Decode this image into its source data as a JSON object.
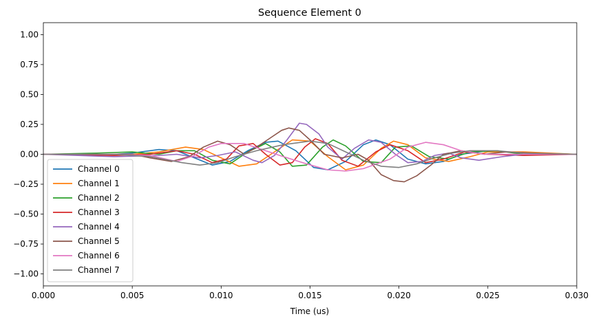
{
  "chart_data": {
    "type": "line",
    "title": "Sequence Element 0",
    "xlabel": "Time (us)",
    "ylabel": "",
    "xlim": [
      0.0,
      0.03
    ],
    "ylim": [
      -1.1,
      1.1
    ],
    "xticks": [
      "0.000",
      "0.005",
      "0.010",
      "0.015",
      "0.020",
      "0.025",
      "0.030"
    ],
    "yticks": [
      "-1.00",
      "-0.75",
      "-0.50",
      "-0.25",
      "0.00",
      "0.25",
      "0.50",
      "0.75",
      "1.00"
    ],
    "grid": false,
    "legend_position": "lower-left",
    "series": [
      {
        "name": "Channel 0",
        "color": "#1f77b4",
        "points": [
          [
            0,
            0
          ],
          [
            0.004,
            0.0
          ],
          [
            0.005,
            0.01
          ],
          [
            0.0065,
            0.04
          ],
          [
            0.0075,
            0.03
          ],
          [
            0.0085,
            -0.03
          ],
          [
            0.0095,
            -0.09
          ],
          [
            0.0105,
            -0.06
          ],
          [
            0.0115,
            0.03
          ],
          [
            0.0125,
            0.1
          ],
          [
            0.0132,
            0.11
          ],
          [
            0.0142,
            0.03
          ],
          [
            0.0152,
            -0.11
          ],
          [
            0.016,
            -0.13
          ],
          [
            0.017,
            -0.06
          ],
          [
            0.018,
            0.08
          ],
          [
            0.0187,
            0.12
          ],
          [
            0.0195,
            0.08
          ],
          [
            0.0205,
            -0.04
          ],
          [
            0.0215,
            -0.08
          ],
          [
            0.0225,
            -0.06
          ],
          [
            0.0235,
            0.0
          ],
          [
            0.025,
            0.03
          ],
          [
            0.027,
            0.01
          ],
          [
            0.03,
            0
          ]
        ]
      },
      {
        "name": "Channel 1",
        "color": "#ff7f0e",
        "points": [
          [
            0,
            0
          ],
          [
            0.005,
            0.0
          ],
          [
            0.0065,
            0.02
          ],
          [
            0.008,
            0.06
          ],
          [
            0.009,
            0.04
          ],
          [
            0.01,
            -0.03
          ],
          [
            0.011,
            -0.1
          ],
          [
            0.012,
            -0.08
          ],
          [
            0.013,
            0.02
          ],
          [
            0.014,
            0.12
          ],
          [
            0.015,
            0.11
          ],
          [
            0.016,
            -0.02
          ],
          [
            0.017,
            -0.13
          ],
          [
            0.018,
            -0.09
          ],
          [
            0.019,
            0.05
          ],
          [
            0.0197,
            0.11
          ],
          [
            0.0205,
            0.08
          ],
          [
            0.0215,
            -0.03
          ],
          [
            0.0228,
            -0.06
          ],
          [
            0.024,
            -0.02
          ],
          [
            0.025,
            0.02
          ],
          [
            0.027,
            0.02
          ],
          [
            0.03,
            0
          ]
        ]
      },
      {
        "name": "Channel 2",
        "color": "#2ca02c",
        "points": [
          [
            0,
            0
          ],
          [
            0.003,
            0.01
          ],
          [
            0.005,
            0.02
          ],
          [
            0.0065,
            0.0
          ],
          [
            0.0075,
            0.03
          ],
          [
            0.0085,
            0.03
          ],
          [
            0.0095,
            -0.05
          ],
          [
            0.0105,
            -0.08
          ],
          [
            0.0115,
            0.02
          ],
          [
            0.0125,
            0.09
          ],
          [
            0.0133,
            0.02
          ],
          [
            0.014,
            -0.1
          ],
          [
            0.0148,
            -0.09
          ],
          [
            0.0157,
            0.06
          ],
          [
            0.0163,
            0.12
          ],
          [
            0.017,
            0.07
          ],
          [
            0.018,
            -0.06
          ],
          [
            0.019,
            -0.07
          ],
          [
            0.0198,
            0.06
          ],
          [
            0.0207,
            0.07
          ],
          [
            0.0217,
            -0.02
          ],
          [
            0.0228,
            -0.04
          ],
          [
            0.024,
            0.02
          ],
          [
            0.0255,
            0.03
          ],
          [
            0.027,
            0.0
          ],
          [
            0.03,
            0
          ]
        ]
      },
      {
        "name": "Channel 3",
        "color": "#d62728",
        "points": [
          [
            0,
            0
          ],
          [
            0.004,
            -0.01
          ],
          [
            0.006,
            0.0
          ],
          [
            0.0075,
            0.03
          ],
          [
            0.0085,
            0.0
          ],
          [
            0.0095,
            -0.07
          ],
          [
            0.0103,
            -0.04
          ],
          [
            0.011,
            0.07
          ],
          [
            0.0118,
            0.09
          ],
          [
            0.0125,
            0.0
          ],
          [
            0.0133,
            -0.09
          ],
          [
            0.014,
            -0.07
          ],
          [
            0.0147,
            0.06
          ],
          [
            0.0153,
            0.13
          ],
          [
            0.016,
            0.09
          ],
          [
            0.0168,
            -0.05
          ],
          [
            0.0177,
            -0.1
          ],
          [
            0.0187,
            0.02
          ],
          [
            0.0195,
            0.08
          ],
          [
            0.0205,
            0.03
          ],
          [
            0.0215,
            -0.07
          ],
          [
            0.0225,
            -0.04
          ],
          [
            0.0237,
            0.02
          ],
          [
            0.025,
            0.0
          ],
          [
            0.027,
            -0.01
          ],
          [
            0.03,
            0
          ]
        ]
      },
      {
        "name": "Channel 4",
        "color": "#9467bd",
        "points": [
          [
            0,
            0
          ],
          [
            0.004,
            -0.02
          ],
          [
            0.0065,
            -0.01
          ],
          [
            0.0075,
            0.0
          ],
          [
            0.0088,
            -0.03
          ],
          [
            0.0098,
            -0.01
          ],
          [
            0.0108,
            0.02
          ],
          [
            0.0118,
            -0.05
          ],
          [
            0.0123,
            -0.07
          ],
          [
            0.013,
            -0.01
          ],
          [
            0.0137,
            0.12
          ],
          [
            0.0144,
            0.26
          ],
          [
            0.0148,
            0.25
          ],
          [
            0.0155,
            0.17
          ],
          [
            0.016,
            0.06
          ],
          [
            0.0168,
            -0.04
          ],
          [
            0.0175,
            0.05
          ],
          [
            0.0183,
            0.12
          ],
          [
            0.019,
            0.1
          ],
          [
            0.0198,
            0.0
          ],
          [
            0.0205,
            -0.07
          ],
          [
            0.0213,
            -0.06
          ],
          [
            0.022,
            -0.01
          ],
          [
            0.0228,
            0.01
          ],
          [
            0.0235,
            -0.03
          ],
          [
            0.0245,
            -0.05
          ],
          [
            0.0258,
            -0.02
          ],
          [
            0.027,
            0.0
          ],
          [
            0.03,
            0
          ]
        ]
      },
      {
        "name": "Channel 5",
        "color": "#8c564b",
        "points": [
          [
            0,
            0
          ],
          [
            0.005,
            0.0
          ],
          [
            0.006,
            -0.03
          ],
          [
            0.0072,
            -0.06
          ],
          [
            0.0082,
            -0.02
          ],
          [
            0.009,
            0.06
          ],
          [
            0.0098,
            0.11
          ],
          [
            0.0105,
            0.08
          ],
          [
            0.0113,
            0.0
          ],
          [
            0.012,
            0.06
          ],
          [
            0.0128,
            0.14
          ],
          [
            0.0134,
            0.2
          ],
          [
            0.0138,
            0.22
          ],
          [
            0.0144,
            0.2
          ],
          [
            0.015,
            0.12
          ],
          [
            0.0158,
            0.0
          ],
          [
            0.0168,
            -0.03
          ],
          [
            0.0177,
            0.0
          ],
          [
            0.0183,
            -0.05
          ],
          [
            0.019,
            -0.17
          ],
          [
            0.0197,
            -0.22
          ],
          [
            0.0203,
            -0.23
          ],
          [
            0.021,
            -0.18
          ],
          [
            0.0218,
            -0.09
          ],
          [
            0.0225,
            0.0
          ],
          [
            0.0235,
            0.03
          ],
          [
            0.0248,
            0.0
          ],
          [
            0.026,
            0.02
          ],
          [
            0.0275,
            0.01
          ],
          [
            0.03,
            0
          ]
        ]
      },
      {
        "name": "Channel 6",
        "color": "#e377c2",
        "points": [
          [
            0,
            0
          ],
          [
            0.004,
            0.0
          ],
          [
            0.006,
            -0.01
          ],
          [
            0.0075,
            -0.06
          ],
          [
            0.0085,
            -0.01
          ],
          [
            0.0093,
            0.06
          ],
          [
            0.01,
            0.09
          ],
          [
            0.0113,
            0.09
          ],
          [
            0.0123,
            0.04
          ],
          [
            0.0133,
            -0.01
          ],
          [
            0.0148,
            -0.08
          ],
          [
            0.016,
            -0.13
          ],
          [
            0.017,
            -0.14
          ],
          [
            0.018,
            -0.12
          ],
          [
            0.0195,
            -0.04
          ],
          [
            0.0205,
            0.06
          ],
          [
            0.0215,
            0.1
          ],
          [
            0.0225,
            0.08
          ],
          [
            0.0235,
            0.03
          ],
          [
            0.0248,
            0.0
          ],
          [
            0.026,
            0.0
          ],
          [
            0.03,
            0
          ]
        ]
      },
      {
        "name": "Channel 7",
        "color": "#7f7f7f",
        "points": [
          [
            0,
            0
          ],
          [
            0.004,
            0.0
          ],
          [
            0.006,
            -0.02
          ],
          [
            0.0078,
            -0.07
          ],
          [
            0.0088,
            -0.09
          ],
          [
            0.0098,
            -0.07
          ],
          [
            0.0108,
            -0.02
          ],
          [
            0.012,
            0.03
          ],
          [
            0.0135,
            0.08
          ],
          [
            0.015,
            0.11
          ],
          [
            0.016,
            0.09
          ],
          [
            0.017,
            0.02
          ],
          [
            0.018,
            -0.05
          ],
          [
            0.019,
            -0.1
          ],
          [
            0.02,
            -0.11
          ],
          [
            0.021,
            -0.08
          ],
          [
            0.022,
            -0.03
          ],
          [
            0.023,
            0.01
          ],
          [
            0.024,
            0.03
          ],
          [
            0.0255,
            0.03
          ],
          [
            0.027,
            0.01
          ],
          [
            0.03,
            0
          ]
        ]
      }
    ]
  }
}
